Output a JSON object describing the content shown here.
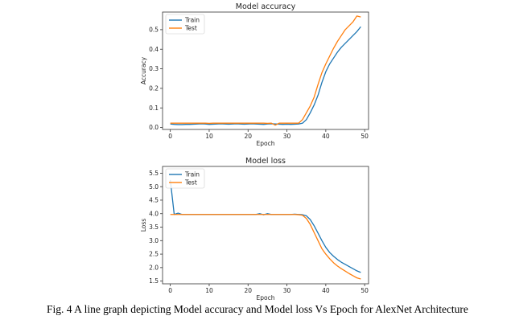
{
  "caption": "Fig. 4  A line graph depicting Model accuracy and Model loss Vs Epoch for AlexNet Architecture",
  "colors": {
    "train": "#1f77b4",
    "test": "#ff7f0e"
  },
  "chart_data": [
    {
      "type": "line",
      "title": "Model accuracy",
      "xlabel": "Epoch",
      "ylabel": "Accuracy",
      "xlim": [
        -2,
        51
      ],
      "ylim": [
        -0.01,
        0.59
      ],
      "xticks": [
        "0",
        "10",
        "20",
        "30",
        "40",
        "50"
      ],
      "yticks": [
        "0.0",
        "0.1",
        "0.2",
        "0.3",
        "0.4",
        "0.5"
      ],
      "legend": "top-left",
      "x": [
        0,
        1,
        2,
        3,
        4,
        5,
        6,
        7,
        8,
        9,
        10,
        11,
        12,
        13,
        14,
        15,
        16,
        17,
        18,
        19,
        20,
        21,
        22,
        23,
        24,
        25,
        26,
        27,
        28,
        29,
        30,
        31,
        32,
        33,
        34,
        35,
        36,
        37,
        38,
        39,
        40,
        41,
        42,
        43,
        44,
        45,
        46,
        47,
        48,
        49
      ],
      "series": [
        {
          "name": "Train",
          "values": [
            0.018,
            0.016,
            0.015,
            0.015,
            0.016,
            0.016,
            0.017,
            0.018,
            0.019,
            0.018,
            0.016,
            0.017,
            0.018,
            0.019,
            0.018,
            0.017,
            0.018,
            0.019,
            0.018,
            0.017,
            0.018,
            0.019,
            0.018,
            0.017,
            0.016,
            0.018,
            0.019,
            0.018,
            0.017,
            0.016,
            0.017,
            0.016,
            0.017,
            0.018,
            0.022,
            0.04,
            0.075,
            0.115,
            0.165,
            0.23,
            0.285,
            0.325,
            0.355,
            0.385,
            0.41,
            0.43,
            0.45,
            0.47,
            0.49,
            0.515
          ]
        },
        {
          "name": "Test",
          "values": [
            0.022,
            0.022,
            0.022,
            0.022,
            0.022,
            0.022,
            0.022,
            0.022,
            0.022,
            0.022,
            0.021,
            0.022,
            0.022,
            0.022,
            0.022,
            0.022,
            0.022,
            0.022,
            0.022,
            0.022,
            0.022,
            0.022,
            0.022,
            0.022,
            0.022,
            0.021,
            0.022,
            0.012,
            0.022,
            0.022,
            0.022,
            0.022,
            0.022,
            0.022,
            0.04,
            0.075,
            0.11,
            0.155,
            0.22,
            0.28,
            0.325,
            0.365,
            0.405,
            0.44,
            0.47,
            0.5,
            0.52,
            0.54,
            0.57,
            0.565
          ]
        }
      ]
    },
    {
      "type": "line",
      "title": "Model loss",
      "xlabel": "Epoch",
      "ylabel": "Loss",
      "xlim": [
        -2,
        51
      ],
      "ylim": [
        1.4,
        5.75
      ],
      "xticks": [
        "0",
        "10",
        "20",
        "30",
        "40",
        "50"
      ],
      "yticks": [
        "1.5",
        "2.0",
        "2.5",
        "3.0",
        "3.5",
        "4.0",
        "4.5",
        "5.0",
        "5.5"
      ],
      "legend": "top-left",
      "x": [
        0,
        1,
        2,
        3,
        4,
        5,
        6,
        7,
        8,
        9,
        10,
        11,
        12,
        13,
        14,
        15,
        16,
        17,
        18,
        19,
        20,
        21,
        22,
        23,
        24,
        25,
        26,
        27,
        28,
        29,
        30,
        31,
        32,
        33,
        34,
        35,
        36,
        37,
        38,
        39,
        40,
        41,
        42,
        43,
        44,
        45,
        46,
        47,
        48,
        49
      ],
      "series": [
        {
          "name": "Train",
          "values": [
            5.25,
            3.97,
            4.02,
            3.97,
            3.97,
            3.97,
            3.97,
            3.97,
            3.97,
            3.97,
            3.97,
            3.97,
            3.97,
            3.97,
            3.97,
            3.97,
            3.97,
            3.97,
            3.97,
            3.97,
            3.97,
            3.97,
            3.97,
            4.0,
            3.96,
            4.0,
            3.97,
            3.97,
            3.97,
            3.97,
            3.97,
            3.97,
            3.98,
            3.97,
            3.96,
            3.92,
            3.78,
            3.55,
            3.28,
            3.0,
            2.75,
            2.56,
            2.42,
            2.3,
            2.2,
            2.12,
            2.04,
            1.96,
            1.88,
            1.82
          ]
        },
        {
          "name": "Test",
          "values": [
            3.97,
            3.97,
            3.97,
            3.97,
            3.97,
            3.97,
            3.97,
            3.97,
            3.97,
            3.97,
            3.97,
            3.97,
            3.97,
            3.97,
            3.97,
            3.97,
            3.97,
            3.97,
            3.97,
            3.97,
            3.97,
            3.97,
            3.97,
            3.97,
            3.97,
            3.97,
            3.97,
            3.97,
            3.97,
            3.97,
            3.97,
            3.97,
            3.97,
            3.96,
            3.94,
            3.82,
            3.6,
            3.3,
            3.0,
            2.7,
            2.5,
            2.33,
            2.18,
            2.06,
            1.96,
            1.87,
            1.78,
            1.7,
            1.62,
            1.58
          ]
        }
      ]
    }
  ]
}
